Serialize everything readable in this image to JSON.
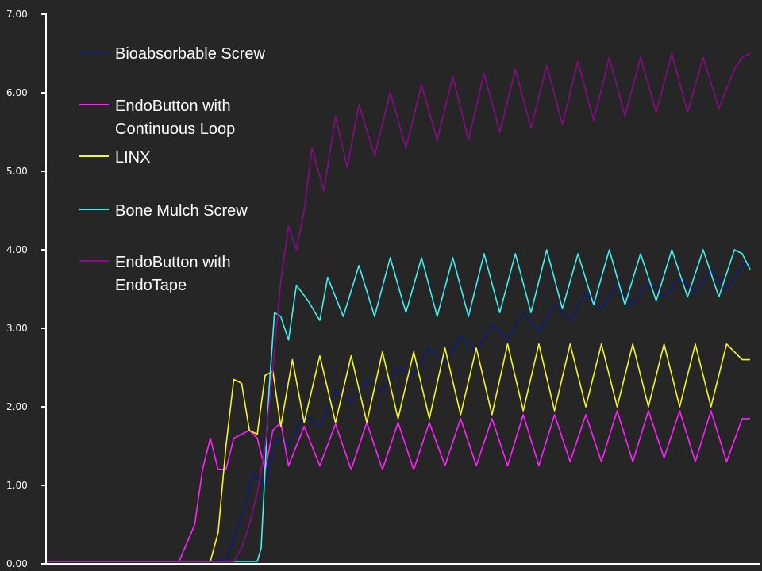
{
  "chart_data": {
    "type": "line",
    "title": "",
    "xlabel": "",
    "ylabel": "",
    "ylim": [
      0,
      7
    ],
    "yticks": [
      "0.00",
      "1.00",
      "2.00",
      "3.00",
      "4.00",
      "5.00",
      "6.00",
      "7.00"
    ],
    "background": "#262626",
    "axis_color": "#ffffff",
    "grid": false,
    "legend_position": "top-left",
    "x_unit_note": "x values are unlabeled sample positions (0–100)",
    "series": [
      {
        "name": "Bioabsorbable Screw",
        "color": "#0a1a80",
        "points": [
          [
            0,
            0.03
          ],
          [
            10,
            0.03
          ],
          [
            20,
            0.03
          ],
          [
            23,
            0.05
          ],
          [
            25,
            0.6
          ],
          [
            26.5,
            1.15
          ],
          [
            28,
            1.0
          ],
          [
            29.5,
            1.6
          ],
          [
            31,
            1.5
          ],
          [
            33,
            1.9
          ],
          [
            35,
            1.75
          ],
          [
            37,
            2.2
          ],
          [
            39,
            2.05
          ],
          [
            41,
            2.35
          ],
          [
            43,
            2.2
          ],
          [
            45,
            2.5
          ],
          [
            47,
            2.4
          ],
          [
            49,
            2.75
          ],
          [
            51,
            2.55
          ],
          [
            53,
            2.9
          ],
          [
            55,
            2.7
          ],
          [
            57,
            3.05
          ],
          [
            59,
            2.85
          ],
          [
            61,
            3.2
          ],
          [
            63,
            2.95
          ],
          [
            65,
            3.3
          ],
          [
            67,
            3.1
          ],
          [
            69,
            3.45
          ],
          [
            71,
            3.25
          ],
          [
            73,
            3.55
          ],
          [
            75,
            3.3
          ],
          [
            77,
            3.6
          ],
          [
            79,
            3.4
          ],
          [
            81,
            3.65
          ],
          [
            83,
            3.45
          ],
          [
            85,
            3.75
          ],
          [
            87,
            3.5
          ],
          [
            89,
            3.8
          ],
          [
            90,
            3.85
          ]
        ]
      },
      {
        "name": "EndoButton with Continuous Loop",
        "color": "#ff22ff",
        "points": [
          [
            0,
            0.03
          ],
          [
            17,
            0.03
          ],
          [
            19,
            0.5
          ],
          [
            20,
            1.2
          ],
          [
            21,
            1.6
          ],
          [
            22,
            1.2
          ],
          [
            23,
            1.2
          ],
          [
            24,
            1.6
          ],
          [
            26,
            1.7
          ],
          [
            27,
            1.6
          ],
          [
            28,
            1.2
          ],
          [
            29,
            1.7
          ],
          [
            30,
            1.8
          ],
          [
            31,
            1.25
          ],
          [
            33,
            1.75
          ],
          [
            35,
            1.25
          ],
          [
            37,
            1.78
          ],
          [
            39,
            1.2
          ],
          [
            41,
            1.8
          ],
          [
            43,
            1.2
          ],
          [
            45,
            1.8
          ],
          [
            47,
            1.2
          ],
          [
            49,
            1.8
          ],
          [
            51,
            1.25
          ],
          [
            53,
            1.85
          ],
          [
            55,
            1.25
          ],
          [
            57,
            1.85
          ],
          [
            59,
            1.25
          ],
          [
            61,
            1.9
          ],
          [
            63,
            1.25
          ],
          [
            65,
            1.9
          ],
          [
            67,
            1.3
          ],
          [
            69,
            1.9
          ],
          [
            71,
            1.3
          ],
          [
            73,
            1.95
          ],
          [
            75,
            1.3
          ],
          [
            77,
            1.95
          ],
          [
            79,
            1.35
          ],
          [
            81,
            1.95
          ],
          [
            83,
            1.3
          ],
          [
            85,
            1.95
          ],
          [
            87,
            1.3
          ],
          [
            89,
            1.85
          ],
          [
            90,
            1.85
          ]
        ]
      },
      {
        "name": "LINX",
        "color": "#f5f52a",
        "points": [
          [
            0,
            0.03
          ],
          [
            21,
            0.03
          ],
          [
            22,
            0.4
          ],
          [
            23,
            1.5
          ],
          [
            24,
            2.35
          ],
          [
            25,
            2.3
          ],
          [
            26,
            1.7
          ],
          [
            27,
            1.65
          ],
          [
            28,
            2.4
          ],
          [
            29,
            2.45
          ],
          [
            30,
            1.75
          ],
          [
            31.5,
            2.6
          ],
          [
            33,
            1.8
          ],
          [
            35,
            2.65
          ],
          [
            37,
            1.8
          ],
          [
            39,
            2.65
          ],
          [
            41,
            1.8
          ],
          [
            43,
            2.7
          ],
          [
            45,
            1.85
          ],
          [
            47,
            2.7
          ],
          [
            49,
            1.85
          ],
          [
            51,
            2.75
          ],
          [
            53,
            1.9
          ],
          [
            55,
            2.75
          ],
          [
            57,
            1.9
          ],
          [
            59,
            2.8
          ],
          [
            61,
            1.95
          ],
          [
            63,
            2.8
          ],
          [
            65,
            1.95
          ],
          [
            67,
            2.8
          ],
          [
            69,
            2.0
          ],
          [
            71,
            2.8
          ],
          [
            73,
            2.0
          ],
          [
            75,
            2.8
          ],
          [
            77,
            2.0
          ],
          [
            79,
            2.8
          ],
          [
            81,
            2.0
          ],
          [
            83,
            2.8
          ],
          [
            85,
            2.0
          ],
          [
            87,
            2.8
          ],
          [
            89,
            2.6
          ],
          [
            90,
            2.6
          ]
        ]
      },
      {
        "name": "Bone Mulch Screw",
        "color": "#40f0f0",
        "points": [
          [
            0,
            0.03
          ],
          [
            27,
            0.03
          ],
          [
            27.5,
            0.2
          ],
          [
            28.5,
            2.2
          ],
          [
            29.2,
            3.2
          ],
          [
            30,
            3.15
          ],
          [
            31,
            2.85
          ],
          [
            32,
            3.55
          ],
          [
            33.5,
            3.35
          ],
          [
            35,
            3.1
          ],
          [
            36,
            3.65
          ],
          [
            38,
            3.15
          ],
          [
            40,
            3.8
          ],
          [
            42,
            3.15
          ],
          [
            44,
            3.9
          ],
          [
            46,
            3.2
          ],
          [
            48,
            3.9
          ],
          [
            50,
            3.15
          ],
          [
            52,
            3.9
          ],
          [
            54,
            3.15
          ],
          [
            56,
            3.95
          ],
          [
            58,
            3.2
          ],
          [
            60,
            3.95
          ],
          [
            62,
            3.2
          ],
          [
            64,
            4.0
          ],
          [
            66,
            3.25
          ],
          [
            68,
            3.95
          ],
          [
            70,
            3.3
          ],
          [
            72,
            4.0
          ],
          [
            74,
            3.3
          ],
          [
            76,
            3.95
          ],
          [
            78,
            3.35
          ],
          [
            80,
            4.0
          ],
          [
            82,
            3.4
          ],
          [
            84,
            4.0
          ],
          [
            86,
            3.4
          ],
          [
            88,
            4.0
          ],
          [
            89,
            3.95
          ],
          [
            90,
            3.75
          ]
        ]
      },
      {
        "name": "EndoButton with EndoTape",
        "color": "#8a0a8a",
        "points": [
          [
            0,
            0.03
          ],
          [
            24,
            0.03
          ],
          [
            25,
            0.2
          ],
          [
            26,
            0.5
          ],
          [
            27,
            0.9
          ],
          [
            28,
            1.5
          ],
          [
            29,
            2.5
          ],
          [
            30,
            3.6
          ],
          [
            31,
            4.3
          ],
          [
            32,
            4.0
          ],
          [
            33,
            4.5
          ],
          [
            34,
            5.3
          ],
          [
            35.5,
            4.75
          ],
          [
            37,
            5.7
          ],
          [
            38.5,
            5.05
          ],
          [
            40,
            5.85
          ],
          [
            42,
            5.2
          ],
          [
            44,
            6.0
          ],
          [
            46,
            5.3
          ],
          [
            48,
            6.1
          ],
          [
            50,
            5.4
          ],
          [
            52,
            6.2
          ],
          [
            54,
            5.4
          ],
          [
            56,
            6.25
          ],
          [
            58,
            5.5
          ],
          [
            60,
            6.3
          ],
          [
            62,
            5.55
          ],
          [
            64,
            6.35
          ],
          [
            66,
            5.6
          ],
          [
            68,
            6.4
          ],
          [
            70,
            5.65
          ],
          [
            72,
            6.45
          ],
          [
            74,
            5.7
          ],
          [
            76,
            6.45
          ],
          [
            78,
            5.75
          ],
          [
            80,
            6.5
          ],
          [
            82,
            5.75
          ],
          [
            84,
            6.45
          ],
          [
            86,
            5.8
          ],
          [
            88,
            6.3
          ],
          [
            89,
            6.45
          ],
          [
            90,
            6.5
          ]
        ]
      }
    ]
  }
}
